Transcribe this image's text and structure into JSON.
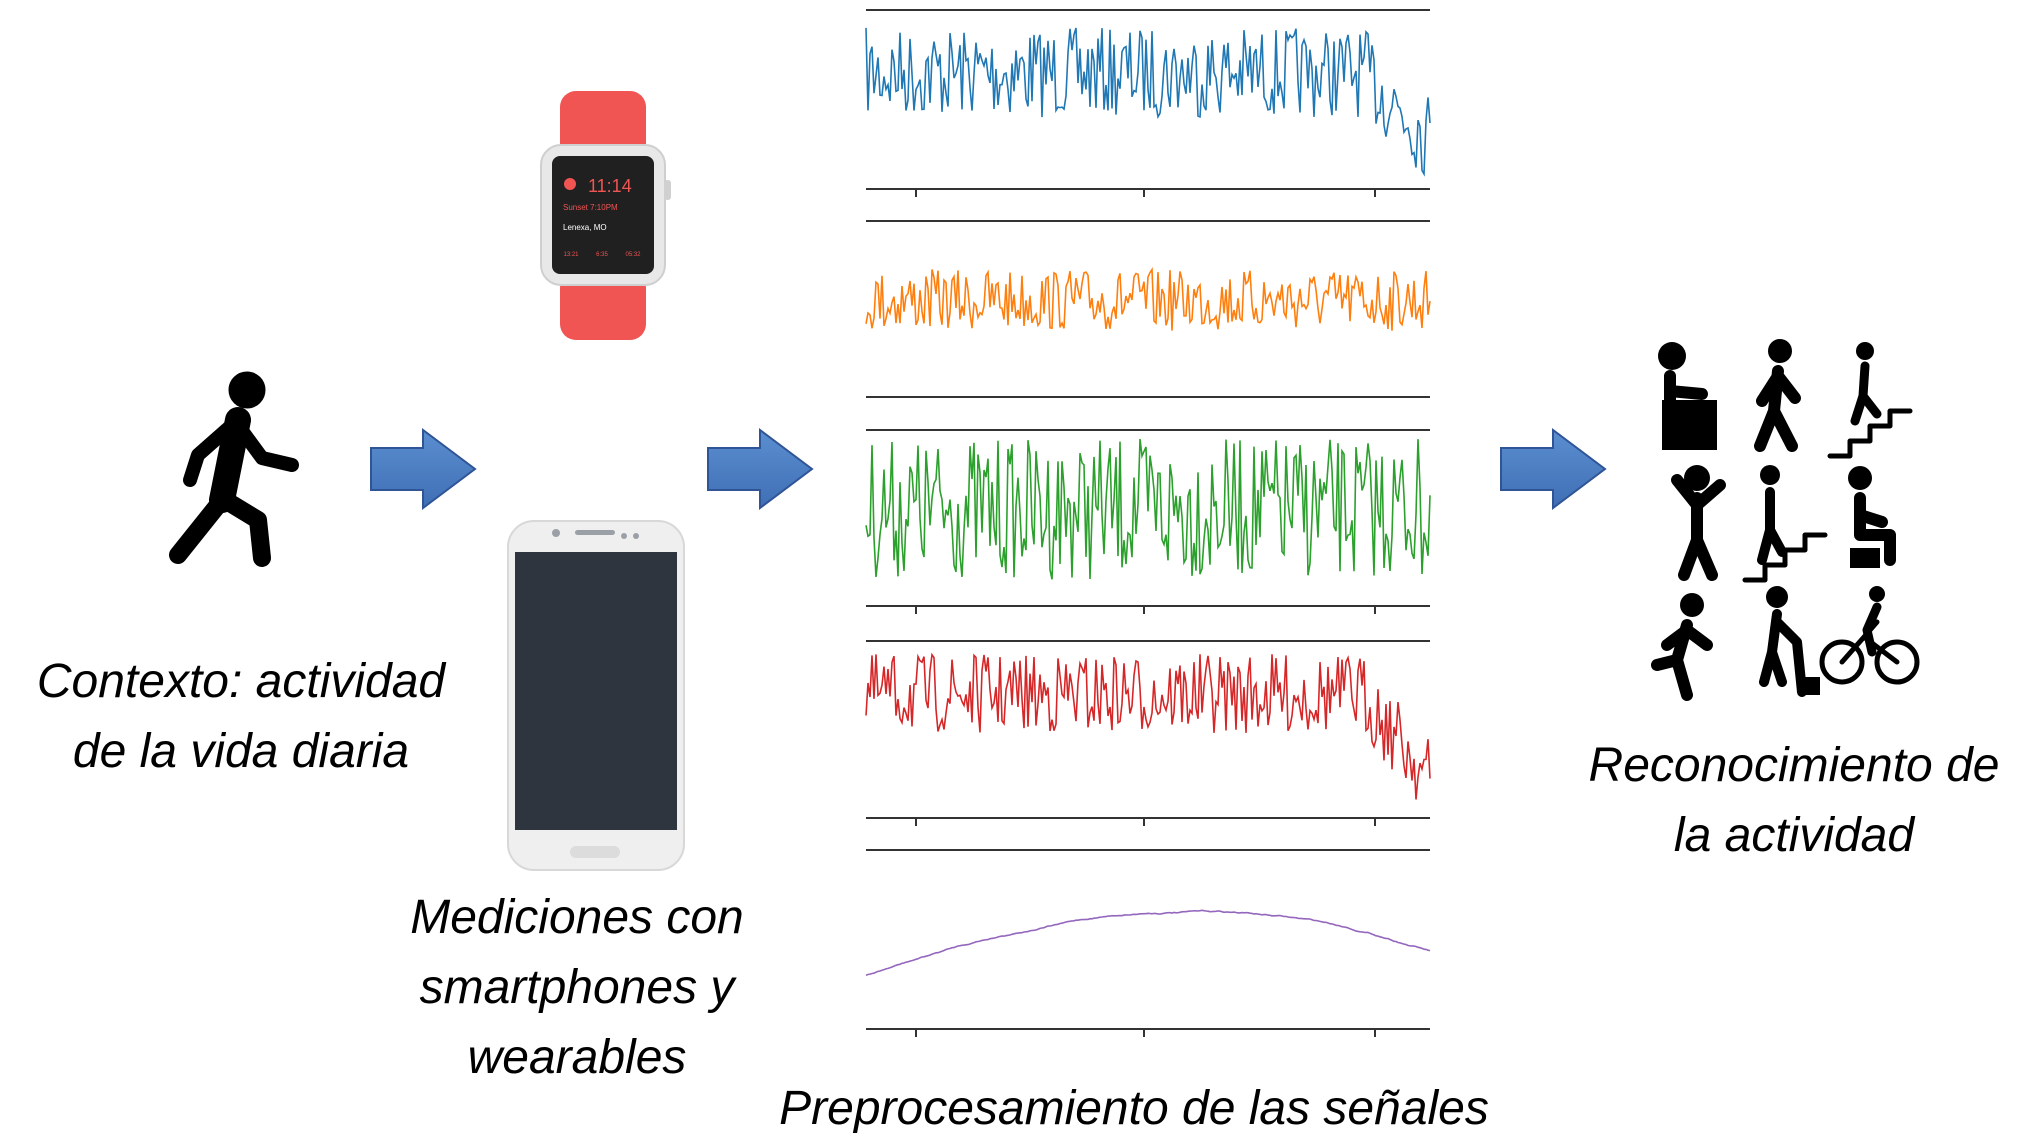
{
  "context": {
    "lines": [
      "Contexto: actividad",
      "de la vida diaria"
    ]
  },
  "measurements": {
    "lines": [
      "Mediciones con",
      "smartphones y",
      "wearables"
    ]
  },
  "watch": {
    "time": "11:14",
    "sunset": "Sunset 7:10PM",
    "location": "Lenexa, MO",
    "alarms": [
      "13:21",
      "6:35",
      "05:32"
    ]
  },
  "preprocessing": {
    "caption": "Preprocesamiento de las señales"
  },
  "recognition": {
    "lines": [
      "Reconocimiento de",
      "la actividad"
    ]
  }
}
